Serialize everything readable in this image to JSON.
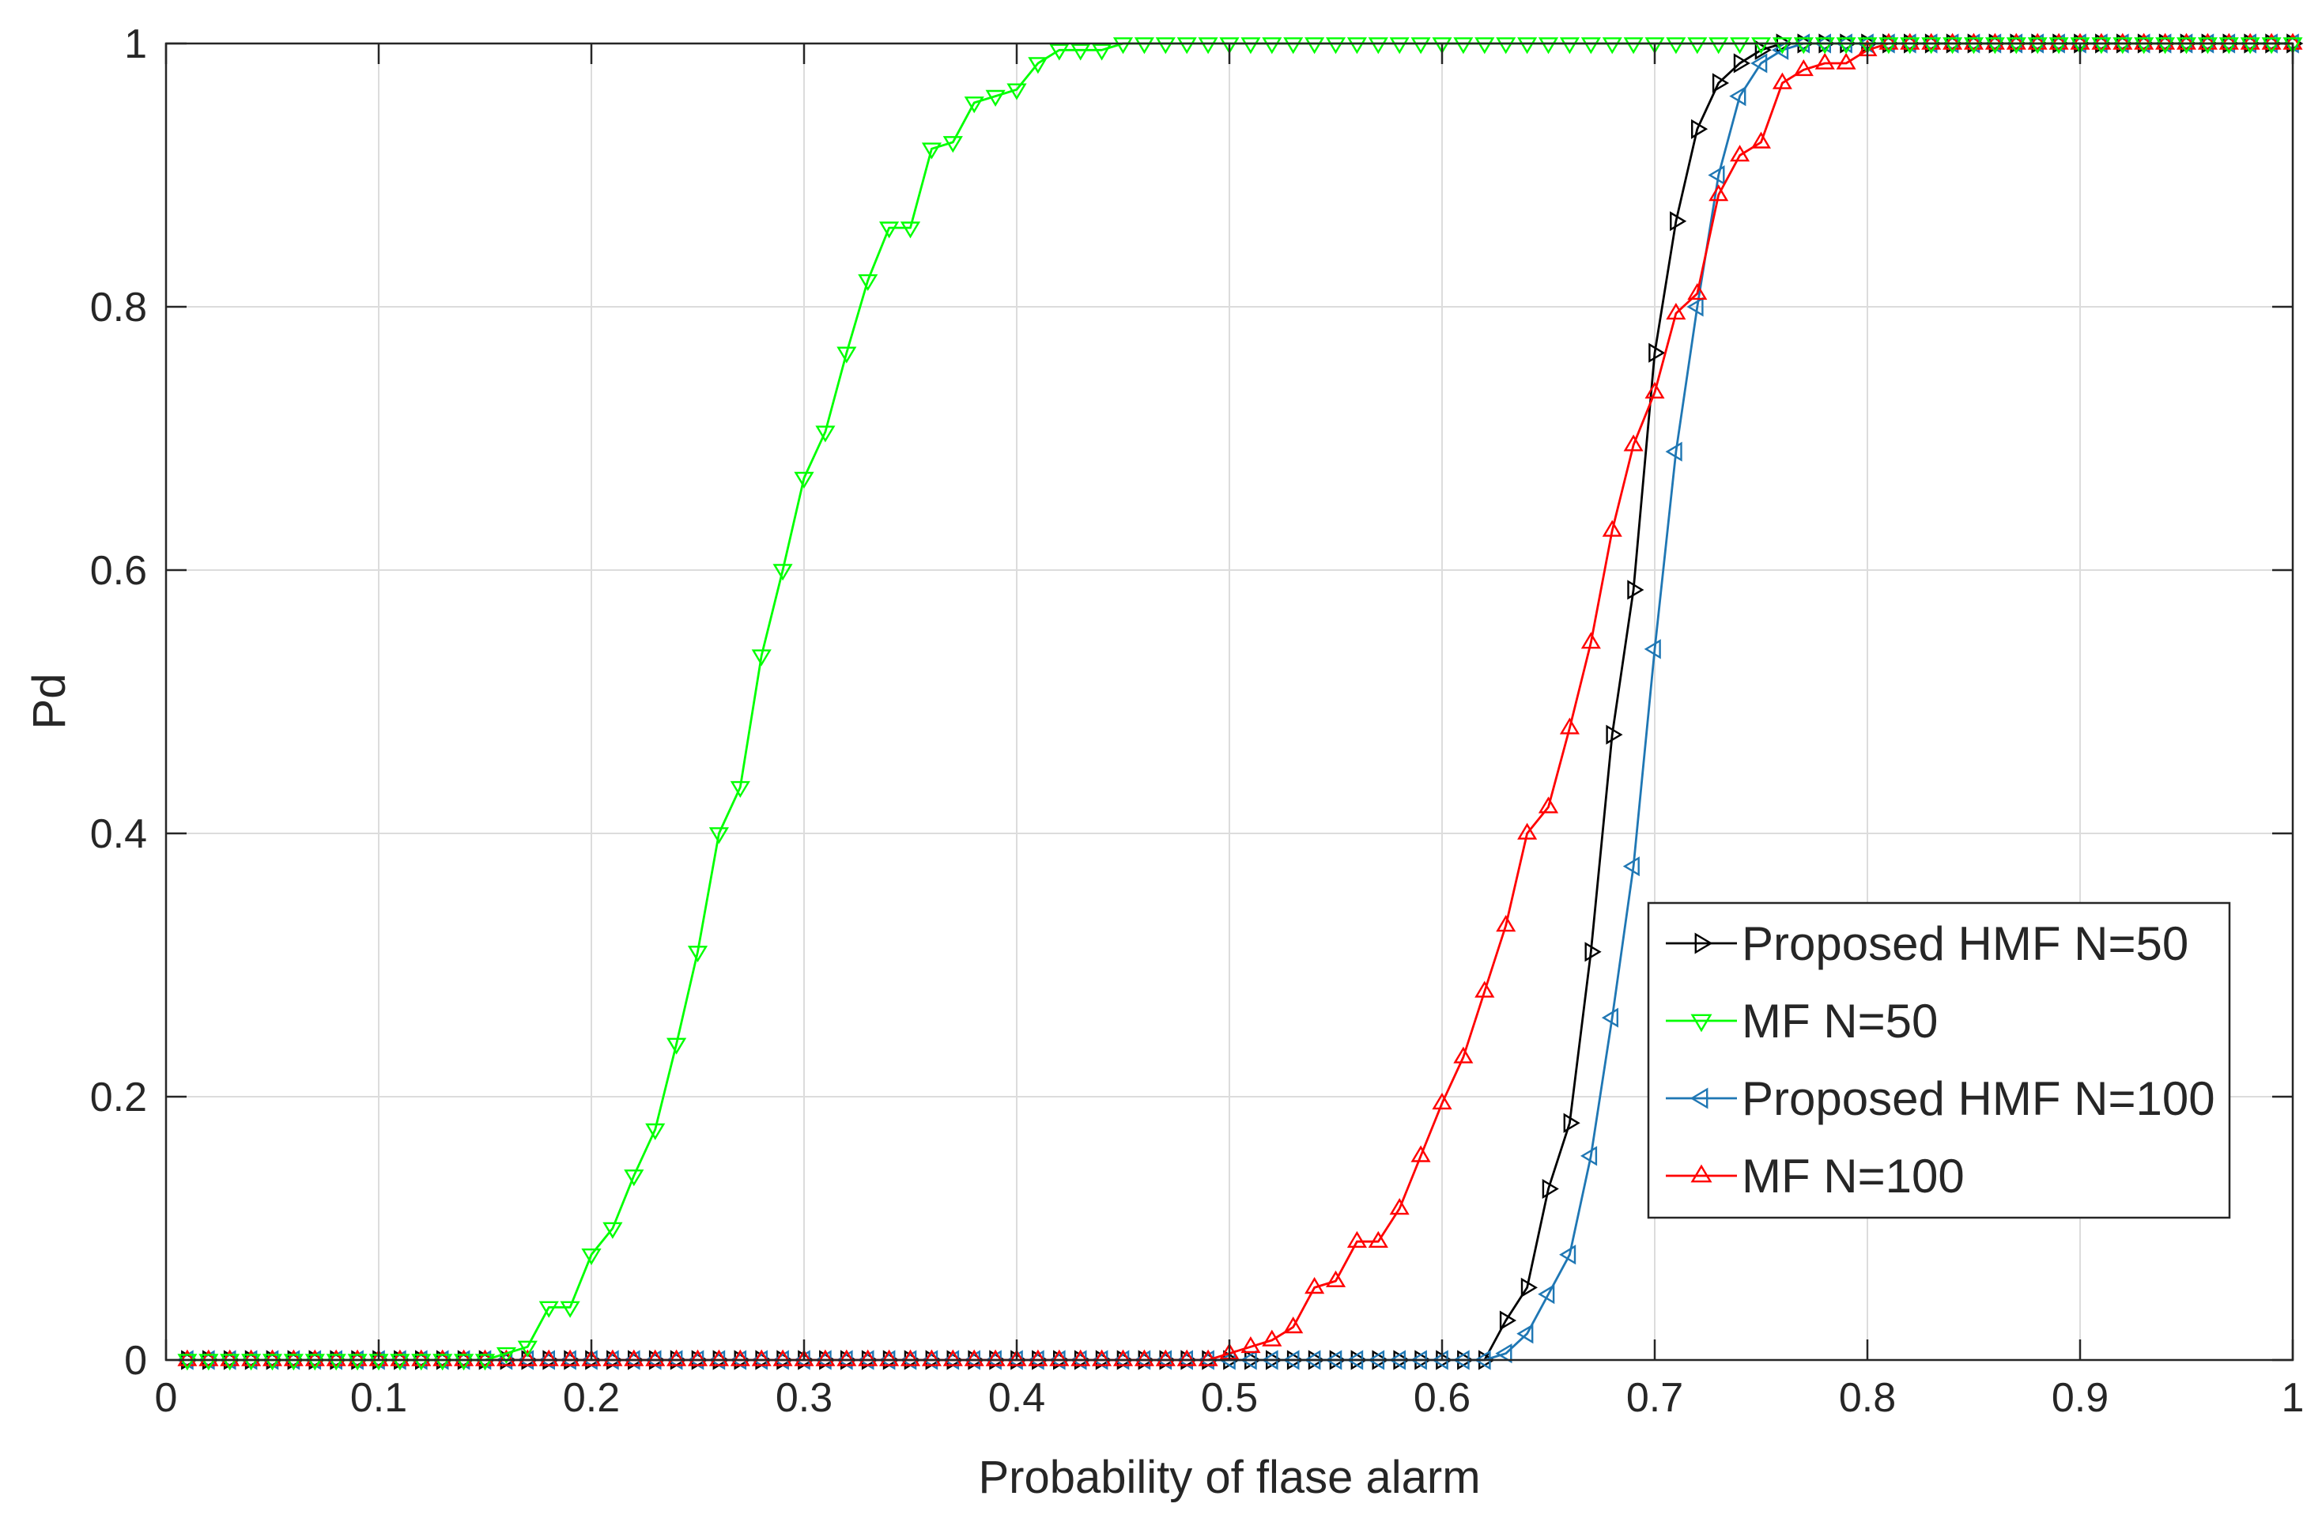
{
  "chart_data": {
    "type": "line",
    "title": "",
    "xlabel": "Probability of flase alarm",
    "ylabel": "Pd",
    "xlim": [
      0,
      1
    ],
    "ylim": [
      0,
      1
    ],
    "grid": true,
    "legend_position": "bottom-right",
    "xticks": [
      0,
      0.1,
      0.2,
      0.3,
      0.4,
      0.5,
      0.6,
      0.7,
      0.8,
      0.9,
      1
    ],
    "xtick_labels": [
      "0",
      "0.1",
      "0.2",
      "0.3",
      "0.4",
      "0.5",
      "0.6",
      "0.7",
      "0.8",
      "0.9",
      "1"
    ],
    "yticks": [
      0,
      0.2,
      0.4,
      0.6,
      0.8,
      1
    ],
    "ytick_labels": [
      "0",
      "0.2",
      "0.4",
      "0.6",
      "0.8",
      "1"
    ],
    "x": [
      0.01,
      0.02,
      0.03,
      0.04,
      0.05,
      0.06,
      0.07,
      0.08,
      0.09,
      0.1,
      0.11,
      0.12,
      0.13,
      0.14,
      0.15,
      0.16,
      0.17,
      0.18,
      0.19,
      0.2,
      0.21,
      0.22,
      0.23,
      0.24,
      0.25,
      0.26,
      0.27,
      0.28,
      0.29,
      0.3,
      0.31,
      0.32,
      0.33,
      0.34,
      0.35,
      0.36,
      0.37,
      0.38,
      0.39,
      0.4,
      0.41,
      0.42,
      0.43,
      0.44,
      0.45,
      0.46,
      0.47,
      0.48,
      0.49,
      0.5,
      0.51,
      0.52,
      0.53,
      0.54,
      0.55,
      0.56,
      0.57,
      0.58,
      0.59,
      0.6,
      0.61,
      0.62,
      0.63,
      0.64,
      0.65,
      0.66,
      0.67,
      0.68,
      0.69,
      0.7,
      0.71,
      0.72,
      0.73,
      0.74,
      0.75,
      0.76,
      0.77,
      0.78,
      0.79,
      0.8,
      0.81,
      0.82,
      0.83,
      0.84,
      0.85,
      0.86,
      0.87,
      0.88,
      0.89,
      0.9,
      0.91,
      0.92,
      0.93,
      0.94,
      0.95,
      0.96,
      0.97,
      0.98,
      0.99,
      1.0
    ],
    "series": [
      {
        "name": "Proposed HMF N=50",
        "color": "#000000",
        "marker": "triangle-right",
        "values": [
          0,
          0,
          0,
          0,
          0,
          0,
          0,
          0,
          0,
          0,
          0,
          0,
          0,
          0,
          0,
          0,
          0,
          0,
          0,
          0,
          0,
          0,
          0,
          0,
          0,
          0,
          0,
          0,
          0,
          0,
          0,
          0,
          0,
          0,
          0,
          0,
          0,
          0,
          0,
          0,
          0,
          0,
          0,
          0,
          0,
          0,
          0,
          0,
          0,
          0,
          0,
          0,
          0,
          0,
          0,
          0,
          0,
          0,
          0,
          0,
          0,
          0,
          0.03,
          0.055,
          0.13,
          0.18,
          0.31,
          0.475,
          0.585,
          0.765,
          0.865,
          0.935,
          0.97,
          0.985,
          0.995,
          1,
          1,
          1,
          1,
          1,
          1,
          1,
          1,
          1,
          1,
          1,
          1,
          1,
          1,
          1,
          1,
          1,
          1,
          1,
          1,
          1,
          1,
          1,
          1,
          1
        ]
      },
      {
        "name": "MF N=50",
        "color": "#00ff00",
        "marker": "triangle-down",
        "values": [
          0,
          0,
          0,
          0,
          0,
          0,
          0,
          0,
          0,
          0,
          0,
          0,
          0,
          0,
          0,
          0.005,
          0.01,
          0.04,
          0.04,
          0.08,
          0.1,
          0.14,
          0.175,
          0.24,
          0.31,
          0.4,
          0.435,
          0.535,
          0.6,
          0.67,
          0.705,
          0.765,
          0.82,
          0.86,
          0.86,
          0.92,
          0.925,
          0.955,
          0.96,
          0.965,
          0.985,
          0.995,
          0.995,
          0.995,
          1,
          1,
          1,
          1,
          1,
          1,
          1,
          1,
          1,
          1,
          1,
          1,
          1,
          1,
          1,
          1,
          1,
          1,
          1,
          1,
          1,
          1,
          1,
          1,
          1,
          1,
          1,
          1,
          1,
          1,
          1,
          1,
          1,
          1,
          1,
          1,
          1,
          1,
          1,
          1,
          1,
          1,
          1,
          1,
          1,
          1,
          1,
          1,
          1,
          1,
          1,
          1,
          1,
          1,
          1,
          1
        ]
      },
      {
        "name": "Proposed HMF N=100",
        "color": "#1f77b4",
        "marker": "triangle-left",
        "values": [
          0,
          0,
          0,
          0,
          0,
          0,
          0,
          0,
          0,
          0,
          0,
          0,
          0,
          0,
          0,
          0,
          0,
          0,
          0,
          0,
          0,
          0,
          0,
          0,
          0,
          0,
          0,
          0,
          0,
          0,
          0,
          0,
          0,
          0,
          0,
          0,
          0,
          0,
          0,
          0,
          0,
          0,
          0,
          0,
          0,
          0,
          0,
          0,
          0,
          0,
          0,
          0,
          0,
          0,
          0,
          0,
          0,
          0,
          0,
          0,
          0,
          0,
          0.005,
          0.02,
          0.05,
          0.08,
          0.155,
          0.26,
          0.375,
          0.54,
          0.69,
          0.8,
          0.9,
          0.96,
          0.985,
          0.995,
          1,
          1,
          1,
          1,
          1,
          1,
          1,
          1,
          1,
          1,
          1,
          1,
          1,
          1,
          1,
          1,
          1,
          1,
          1,
          1,
          1,
          1,
          1,
          1
        ]
      },
      {
        "name": "MF N=100",
        "color": "#ff0000",
        "marker": "triangle-up",
        "values": [
          0,
          0,
          0,
          0,
          0,
          0,
          0,
          0,
          0,
          0,
          0,
          0,
          0,
          0,
          0,
          0,
          0,
          0,
          0,
          0,
          0,
          0,
          0,
          0,
          0,
          0,
          0,
          0,
          0,
          0,
          0,
          0,
          0,
          0,
          0,
          0,
          0,
          0,
          0,
          0,
          0,
          0,
          0,
          0,
          0,
          0,
          0,
          0,
          0,
          0.005,
          0.01,
          0.015,
          0.025,
          0.055,
          0.06,
          0.09,
          0.09,
          0.115,
          0.155,
          0.195,
          0.23,
          0.28,
          0.33,
          0.4,
          0.42,
          0.48,
          0.545,
          0.63,
          0.695,
          0.735,
          0.795,
          0.81,
          0.885,
          0.915,
          0.925,
          0.97,
          0.98,
          0.985,
          0.985,
          0.995,
          1,
          1,
          1,
          1,
          1,
          1,
          1,
          1,
          1,
          1,
          1,
          1,
          1,
          1,
          1,
          1,
          1,
          1,
          1,
          1
        ]
      }
    ]
  }
}
